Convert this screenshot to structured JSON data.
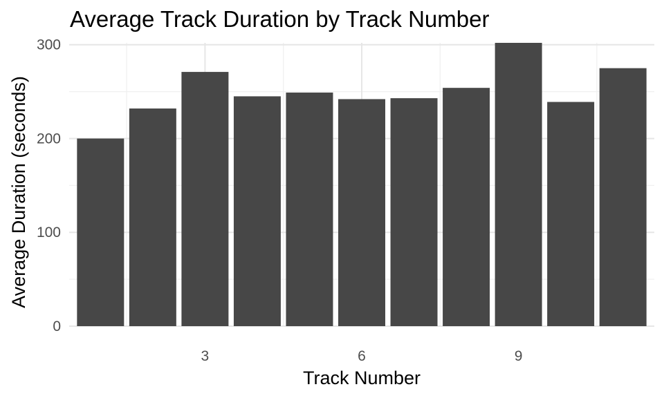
{
  "chart_data": {
    "type": "bar",
    "title": "Average Track Duration by Track Number",
    "xlabel": "Track Number",
    "ylabel": "Average Duration (seconds)",
    "x": [
      1,
      2,
      3,
      4,
      5,
      6,
      7,
      8,
      9,
      10,
      11
    ],
    "values": [
      200,
      232,
      271,
      245,
      249,
      242,
      243,
      254,
      302,
      239,
      275
    ],
    "xlim": [
      0.4,
      11.6
    ],
    "ylim": [
      0,
      302
    ],
    "x_ticks": [
      3,
      6,
      9
    ],
    "y_ticks": [
      0,
      100,
      200,
      300
    ],
    "grid": true,
    "bar_color": "#474747",
    "grid_color": "#e6e6e6",
    "background": "#ffffff"
  }
}
